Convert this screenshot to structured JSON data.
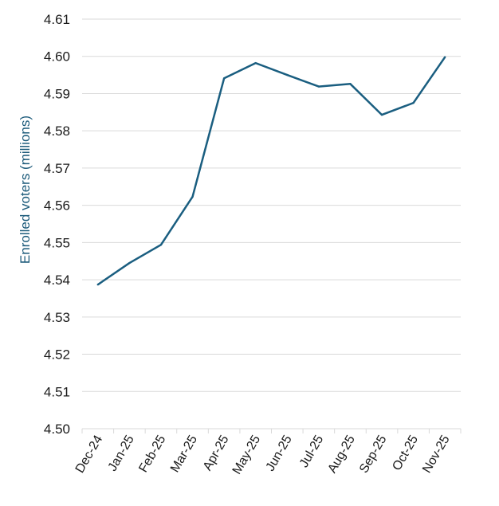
{
  "chart_data": {
    "type": "line",
    "title": "",
    "xlabel": "",
    "ylabel": "Enrolled voters (millions)",
    "categories": [
      "Dec-24",
      "Jan-25",
      "Feb-25",
      "Mar-25",
      "Apr-25",
      "May-25",
      "Jun-25",
      "Jul-25",
      "Aug-25",
      "Sep-25",
      "Oct-25",
      "Nov-25"
    ],
    "series": [
      {
        "values": [
          4.5387,
          4.5445,
          4.5494,
          4.5623,
          4.5941,
          4.5982,
          4.595,
          4.5919,
          4.5926,
          4.5843,
          4.5875,
          4.5998
        ]
      }
    ],
    "ylim": [
      4.5,
      4.61
    ],
    "yticks": [
      "4.50",
      "4.51",
      "4.52",
      "4.53",
      "4.54",
      "4.55",
      "4.56",
      "4.57",
      "4.58",
      "4.59",
      "4.60",
      "4.61"
    ],
    "grid": "horizontal",
    "legend": "none",
    "colors": {
      "line": "#1a5e80",
      "ylabel": "#1b5a7a",
      "grid": "#d9d9d9",
      "text": "#1a1a1a"
    }
  }
}
